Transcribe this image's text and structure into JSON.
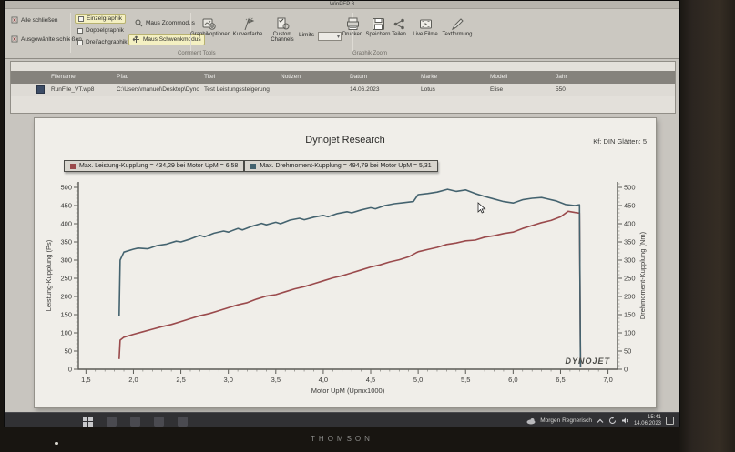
{
  "window": {
    "title": "WinPEP 8"
  },
  "toolbar": {
    "left_items": [
      {
        "label": "Alle schließen"
      },
      {
        "label": "Ausgewählte schließen"
      }
    ],
    "graph_modes": [
      {
        "label": "Einzelgraphik",
        "active": true
      },
      {
        "label": "Doppelgraphik",
        "active": false
      },
      {
        "label": "Dreifachgraphik",
        "active": false
      }
    ],
    "mouse_modes": [
      {
        "label": "Maus Zoommodus",
        "active": false
      },
      {
        "label": "Maus Schwenkmodus",
        "active": true
      }
    ],
    "buttons": [
      {
        "label": "Graphikoptionen"
      },
      {
        "label": "Kurvenfarbe"
      },
      {
        "label": "Custom Channels"
      }
    ],
    "limits_label": "Limits",
    "limits_value": "",
    "right_buttons": [
      {
        "label": "Drucken"
      },
      {
        "label": "Speichern"
      },
      {
        "label": "Teilen"
      },
      {
        "label": "Live Filme"
      },
      {
        "label": "Textformung"
      }
    ],
    "group_labels": [
      "Comment Tools",
      "Graphik Zoom"
    ]
  },
  "file_table": {
    "columns": [
      "Filename",
      "Pfad",
      "Titel",
      "Notizen",
      "Datum",
      "Marke",
      "Modell",
      "Jahr"
    ],
    "rows": [
      [
        "RunFile_VT.wp8",
        "C:\\Users\\manuel\\Desktop\\Dyno",
        "Test Leistungssteigerung",
        "",
        "14.06.2023",
        "Lotus",
        "Elise",
        "550"
      ]
    ]
  },
  "chart_data": {
    "type": "line",
    "title": "Dynojet Research",
    "correction_label": "Kf: DIN Glätten: 5",
    "xlabel": "Motor UpM (Upmx1000)",
    "ylabel_left": "Leistung-Kupplung (Ps)",
    "ylabel_right": "Drehmoment-Kupplung (Nm)",
    "xlim": [
      1.42,
      7.1
    ],
    "ylim": [
      0,
      515
    ],
    "x_ticks": [
      "1,5",
      "2,0",
      "2,5",
      "3,0",
      "3,5",
      "4,0",
      "4,5",
      "5,0",
      "5,5",
      "6,0",
      "6,5",
      "7,0"
    ],
    "y_ticks": [
      0,
      50,
      100,
      150,
      200,
      250,
      300,
      350,
      400,
      450,
      500
    ],
    "grid": false,
    "legend_position": "top-left",
    "legend": [
      {
        "label": "Max. Leistung-Kupplung = 434,29 bei Motor UpM = 6,58",
        "color": "#9a4a4c"
      },
      {
        "label": "Max. Drehmoment-Kupplung = 494,79 bei Motor UpM = 5,31",
        "color": "#44636f"
      }
    ],
    "series": [
      {
        "name": "Leistung-Kupplung",
        "axis": "left",
        "unit": "Ps",
        "color": "#9a4a4c",
        "points": [
          [
            1.85,
            28
          ],
          [
            1.86,
            80
          ],
          [
            1.9,
            88
          ],
          [
            2.0,
            96
          ],
          [
            2.1,
            103
          ],
          [
            2.2,
            110
          ],
          [
            2.3,
            117
          ],
          [
            2.4,
            123
          ],
          [
            2.5,
            131
          ],
          [
            2.6,
            139
          ],
          [
            2.7,
            147
          ],
          [
            2.8,
            153
          ],
          [
            2.9,
            161
          ],
          [
            3.0,
            169
          ],
          [
            3.1,
            177
          ],
          [
            3.2,
            183
          ],
          [
            3.3,
            193
          ],
          [
            3.4,
            201
          ],
          [
            3.5,
            205
          ],
          [
            3.6,
            213
          ],
          [
            3.7,
            221
          ],
          [
            3.8,
            227
          ],
          [
            3.9,
            235
          ],
          [
            4.0,
            243
          ],
          [
            4.1,
            251
          ],
          [
            4.2,
            257
          ],
          [
            4.3,
            265
          ],
          [
            4.4,
            273
          ],
          [
            4.5,
            281
          ],
          [
            4.6,
            287
          ],
          [
            4.7,
            295
          ],
          [
            4.8,
            301
          ],
          [
            4.9,
            309
          ],
          [
            5.0,
            323
          ],
          [
            5.1,
            329
          ],
          [
            5.2,
            335
          ],
          [
            5.3,
            343
          ],
          [
            5.4,
            347
          ],
          [
            5.5,
            353
          ],
          [
            5.6,
            355
          ],
          [
            5.7,
            363
          ],
          [
            5.8,
            367
          ],
          [
            5.9,
            373
          ],
          [
            6.0,
            377
          ],
          [
            6.1,
            387
          ],
          [
            6.2,
            395
          ],
          [
            6.3,
            403
          ],
          [
            6.4,
            409
          ],
          [
            6.5,
            419
          ],
          [
            6.58,
            434.3
          ],
          [
            6.65,
            431
          ],
          [
            6.7,
            429
          ],
          [
            6.71,
            5
          ]
        ]
      },
      {
        "name": "Drehmoment-Kupplung",
        "axis": "right",
        "unit": "Nm",
        "color": "#44636f",
        "points": [
          [
            1.85,
            145
          ],
          [
            1.86,
            300
          ],
          [
            1.9,
            322
          ],
          [
            2.0,
            330
          ],
          [
            2.05,
            333
          ],
          [
            2.15,
            331
          ],
          [
            2.25,
            340
          ],
          [
            2.35,
            344
          ],
          [
            2.45,
            352
          ],
          [
            2.5,
            350
          ],
          [
            2.6,
            358
          ],
          [
            2.7,
            368
          ],
          [
            2.75,
            364
          ],
          [
            2.85,
            374
          ],
          [
            2.95,
            380
          ],
          [
            3.0,
            377
          ],
          [
            3.1,
            387
          ],
          [
            3.15,
            383
          ],
          [
            3.25,
            393
          ],
          [
            3.35,
            401
          ],
          [
            3.4,
            397
          ],
          [
            3.5,
            404
          ],
          [
            3.55,
            400
          ],
          [
            3.65,
            410
          ],
          [
            3.75,
            415
          ],
          [
            3.8,
            411
          ],
          [
            3.9,
            418
          ],
          [
            4.0,
            423
          ],
          [
            4.05,
            419
          ],
          [
            4.15,
            428
          ],
          [
            4.25,
            433
          ],
          [
            4.3,
            430
          ],
          [
            4.4,
            438
          ],
          [
            4.5,
            444
          ],
          [
            4.55,
            441
          ],
          [
            4.65,
            450
          ],
          [
            4.75,
            455
          ],
          [
            4.85,
            458
          ],
          [
            4.95,
            461
          ],
          [
            5.0,
            480
          ],
          [
            5.1,
            483
          ],
          [
            5.2,
            487
          ],
          [
            5.31,
            494.8
          ],
          [
            5.4,
            489
          ],
          [
            5.5,
            493
          ],
          [
            5.6,
            483
          ],
          [
            5.7,
            475
          ],
          [
            5.8,
            468
          ],
          [
            5.9,
            461
          ],
          [
            6.0,
            457
          ],
          [
            6.1,
            466
          ],
          [
            6.2,
            470
          ],
          [
            6.3,
            472
          ],
          [
            6.35,
            469
          ],
          [
            6.45,
            463
          ],
          [
            6.55,
            453
          ],
          [
            6.65,
            450
          ],
          [
            6.7,
            452
          ],
          [
            6.71,
            5
          ]
        ]
      }
    ],
    "watermark": "DYNOJET"
  },
  "taskbar": {
    "weather": "Morgen Regnerisch",
    "clock_time": "15:41",
    "clock_date": "14.06.2023"
  },
  "monitor_brand": "THOMSON"
}
